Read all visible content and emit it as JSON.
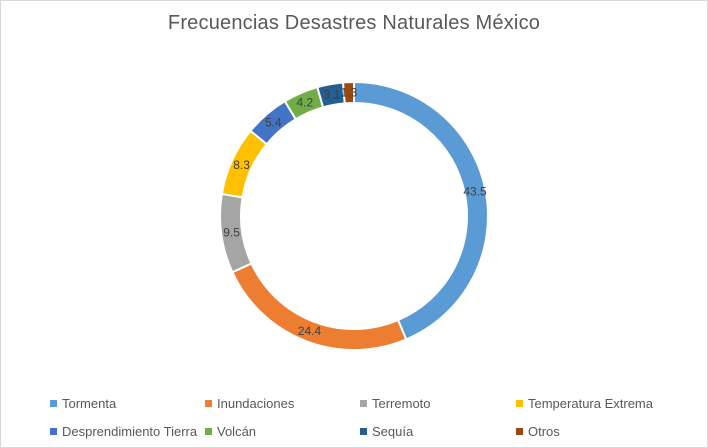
{
  "chart_data": {
    "type": "pie",
    "variant": "doughnut",
    "title": "Frecuencias Desastres Naturales México",
    "categories": [
      "Tormenta",
      "Inundaciones",
      "Terremoto",
      "Temperatura Extrema",
      "Desprendimiento Tierra",
      "Volcán",
      "Sequía",
      "Otros"
    ],
    "values": [
      43.5,
      24.4,
      9.5,
      8.3,
      5.4,
      4.2,
      3.1,
      1.3
    ],
    "value_labels": [
      "43.5",
      "24.4",
      "9.5",
      "8.3",
      "5.4",
      "4.2",
      "3.1",
      "1.3"
    ],
    "colors": [
      "#5b9bd5",
      "#ed7d31",
      "#a5a5a5",
      "#ffc000",
      "#4472c4",
      "#70ad47",
      "#255e91",
      "#9e480e"
    ],
    "legend_position": "bottom"
  }
}
